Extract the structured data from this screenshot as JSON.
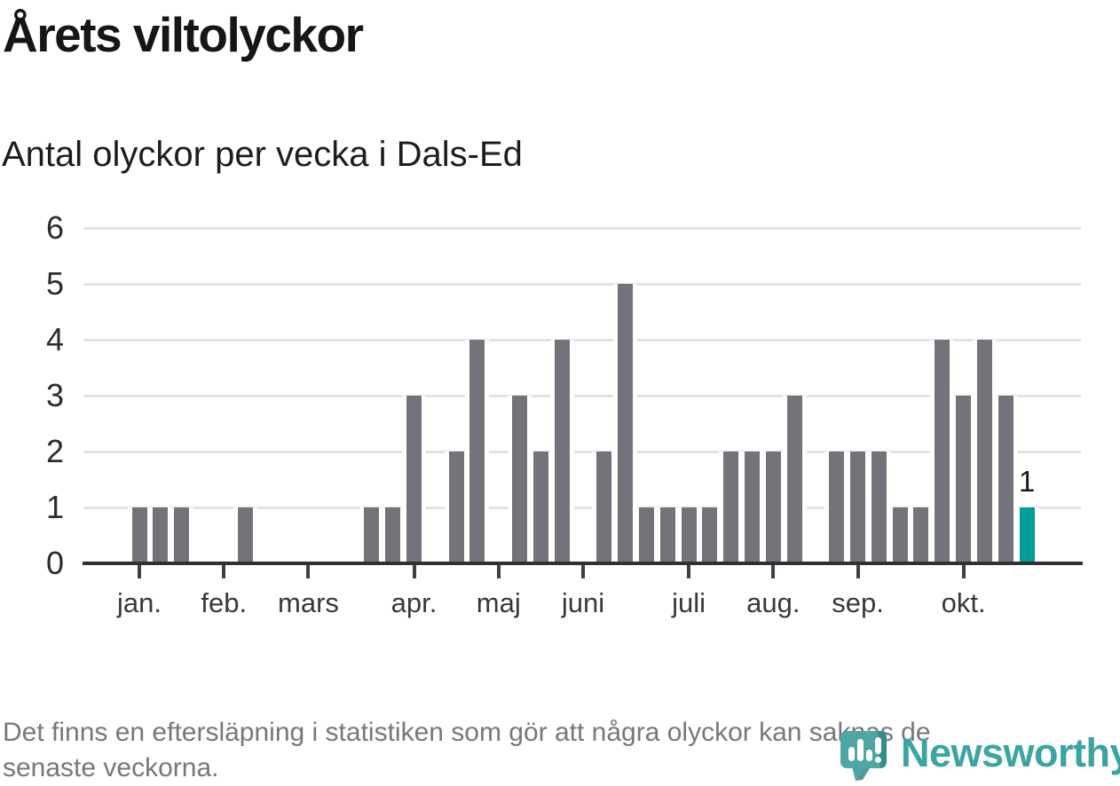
{
  "title": "Årets viltolyckor",
  "subtitle": "Antal olyckor per vecka i Dals-Ed",
  "footnote": {
    "lines": [
      "Det finns en eftersläpning i statistiken som gör att några olyckor kan saknas de",
      "senaste veckorna."
    ]
  },
  "logo": {
    "brand": "Newsworthy",
    "icon": "newsworthy-bar-chart-bubble-icon",
    "icon_color": "#4ea7a3",
    "icon_shade_color": "#2d8a86",
    "wordmark_color": "#3aa5a1"
  },
  "chart_data": {
    "type": "bar",
    "title": "Årets viltolyckor",
    "subtitle": "Antal olyckor per vecka i Dals-Ed",
    "xlabel": "",
    "ylabel": "",
    "ylim": [
      0,
      6
    ],
    "yticks": [
      0,
      1,
      2,
      3,
      4,
      5,
      6
    ],
    "grid": true,
    "legend": "none",
    "x_unit": "vecka (week of year)",
    "values": [
      1,
      1,
      1,
      0,
      0,
      1,
      0,
      0,
      0,
      0,
      0,
      1,
      1,
      3,
      0,
      2,
      4,
      0,
      3,
      2,
      4,
      0,
      2,
      5,
      1,
      1,
      1,
      1,
      2,
      2,
      2,
      3,
      0,
      2,
      2,
      2,
      1,
      1,
      4,
      3,
      4,
      3,
      1
    ],
    "month_ticks": [
      {
        "label": "jan.",
        "week": 1
      },
      {
        "label": "feb.",
        "week": 5
      },
      {
        "label": "mars",
        "week": 9
      },
      {
        "label": "apr.",
        "week": 14
      },
      {
        "label": "maj",
        "week": 18
      },
      {
        "label": "juni",
        "week": 22
      },
      {
        "label": "juli",
        "week": 27
      },
      {
        "label": "aug.",
        "week": 31
      },
      {
        "label": "sep.",
        "week": 35
      },
      {
        "label": "okt.",
        "week": 40
      }
    ],
    "bar_color": "#73737a",
    "highlight_last_bar": true,
    "highlight_color": "#009e98",
    "highlight_value_label": "1",
    "gridline_color": "#e3e3e3",
    "axis_color": "#303035"
  }
}
